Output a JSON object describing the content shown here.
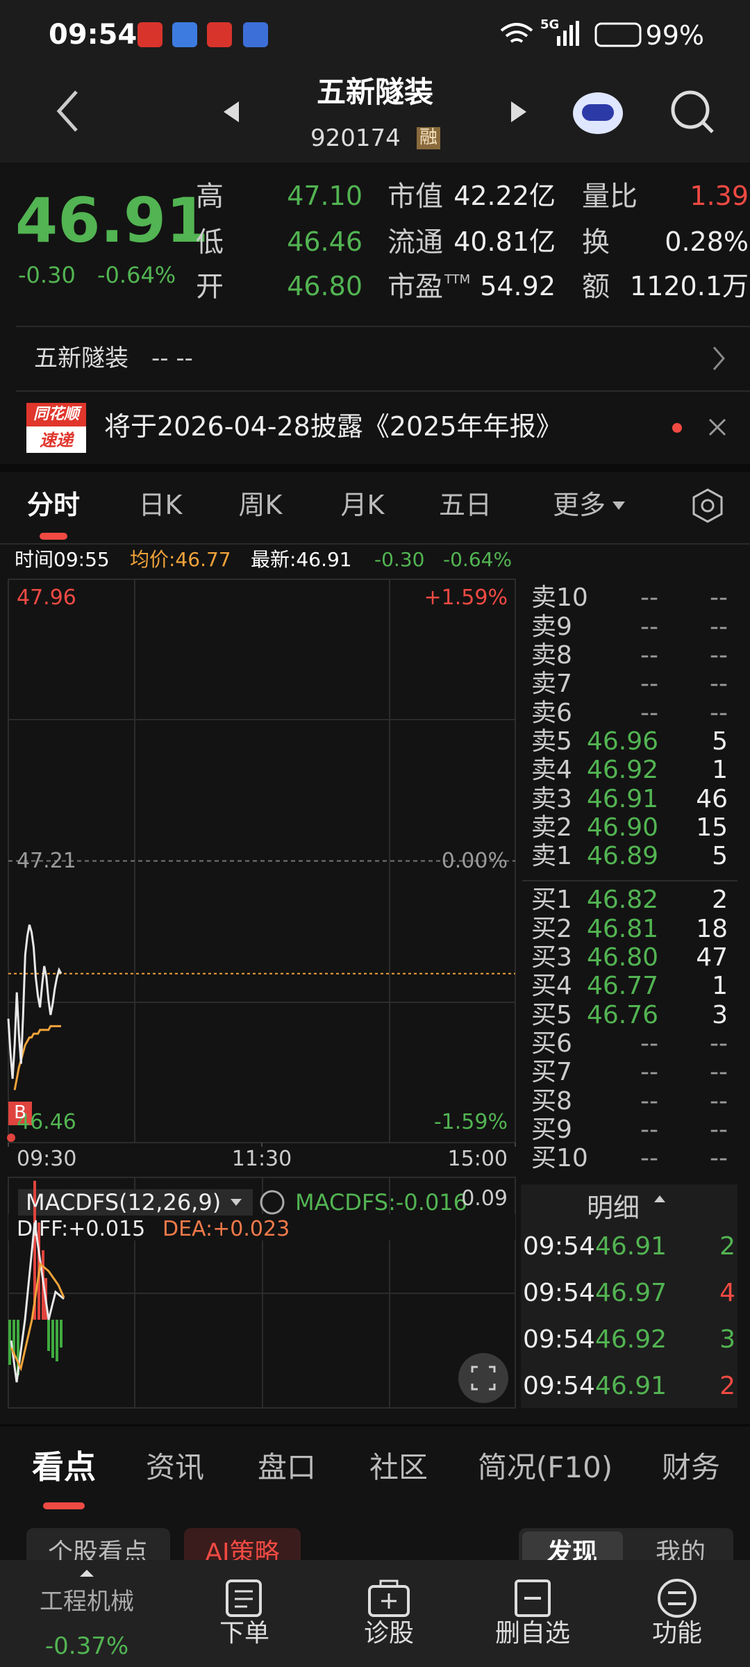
{
  "status": {
    "time": "09:54",
    "network": "5G",
    "battery": "99%"
  },
  "header": {
    "title": "五新隧装",
    "code": "920174",
    "badge": "融"
  },
  "quote": {
    "price": 46.91,
    "change": "-0.30",
    "pct": "-0.64%",
    "left": [
      {
        "label": "高",
        "value": "47.10",
        "color": "#52b452"
      },
      {
        "label": "低",
        "value": "46.46",
        "color": "#52b452"
      },
      {
        "label": "开",
        "value": "46.80",
        "color": "#52b452"
      }
    ],
    "mid": [
      {
        "label": "市值",
        "value": "42.22亿"
      },
      {
        "label": "流通",
        "value": "40.81亿"
      },
      {
        "label": "市盈",
        "sup": "TTM",
        "value": "54.92"
      }
    ],
    "right": [
      {
        "label": "量比",
        "value": "1.39",
        "color": "#f04a43"
      },
      {
        "label": "换",
        "value": "0.28%",
        "color": "#eeeeee"
      },
      {
        "label": "额",
        "value": "1120.1万",
        "color": "#eeeeee"
      }
    ]
  },
  "banner": {
    "name": "五新隧装",
    "placeholder": "-- --"
  },
  "notice": {
    "logo_top": "同花顺",
    "logo_bottom": "速递",
    "text": "将于2026-04-28披露《2025年年报》"
  },
  "tabs": [
    "分时",
    "日K",
    "周K",
    "月K",
    "五日",
    "更多"
  ],
  "info": {
    "time": "时间09:55",
    "avg": "均价:46.77",
    "latest": "最新:46.91",
    "change": "-0.30",
    "pct": "-0.64%"
  },
  "intraday": {
    "type": "line",
    "xlim": [
      0,
      240
    ],
    "xticks": [
      {
        "value": 0,
        "label": "09:30"
      },
      {
        "value": 120,
        "label": "11:30"
      },
      {
        "value": 240,
        "label": "15:00"
      }
    ],
    "ylim": [
      46.46,
      47.96
    ],
    "yticks": [
      47.96,
      47.21,
      46.46
    ],
    "pct_labels": [
      "+1.59%",
      "0.00%",
      "-1.59%"
    ],
    "marker": "B",
    "price": [
      46.79,
      46.7,
      46.63,
      46.72,
      46.86,
      46.75,
      46.67,
      46.8,
      46.96,
      47.01,
      47.04,
      47.02,
      46.98,
      46.9,
      46.85,
      46.82,
      46.88,
      46.93,
      46.9,
      46.84,
      46.8,
      46.83,
      46.87,
      46.9,
      46.92,
      46.91
    ],
    "avg": [
      null,
      null,
      null,
      46.6,
      46.63,
      46.66,
      46.68,
      46.7,
      46.72,
      46.73,
      46.74,
      46.74,
      46.75,
      46.75,
      46.75,
      46.76,
      46.76,
      46.76,
      46.76,
      46.76,
      46.77,
      46.77,
      46.77,
      46.77,
      46.77,
      46.77
    ],
    "price_color": "#e8e8e8",
    "avg_color": "#f0a33a",
    "last_color": "#f0a33a"
  },
  "macd": {
    "name": "MACDFS(12,26,9)",
    "value": "MACDFS:-0.016",
    "max": "0.09",
    "diff": "DIFF:+0.015",
    "dea": "DEA:+0.023"
  },
  "order_book": {
    "sell": [
      {
        "label": "卖10",
        "price": "--",
        "volume": "--"
      },
      {
        "label": "卖9",
        "price": "--",
        "volume": "--"
      },
      {
        "label": "卖8",
        "price": "--",
        "volume": "--"
      },
      {
        "label": "卖7",
        "price": "--",
        "volume": "--"
      },
      {
        "label": "卖6",
        "price": "--",
        "volume": "--"
      },
      {
        "label": "卖5",
        "price": "46.96",
        "volume": "5"
      },
      {
        "label": "卖4",
        "price": "46.92",
        "volume": "1"
      },
      {
        "label": "卖3",
        "price": "46.91",
        "volume": "46"
      },
      {
        "label": "卖2",
        "price": "46.90",
        "volume": "15"
      },
      {
        "label": "卖1",
        "price": "46.89",
        "volume": "5"
      }
    ],
    "buy": [
      {
        "label": "买1",
        "price": "46.82",
        "volume": "2"
      },
      {
        "label": "买2",
        "price": "46.81",
        "volume": "18"
      },
      {
        "label": "买3",
        "price": "46.80",
        "volume": "47"
      },
      {
        "label": "买4",
        "price": "46.77",
        "volume": "1"
      },
      {
        "label": "买5",
        "price": "46.76",
        "volume": "3"
      },
      {
        "label": "买6",
        "price": "--",
        "volume": "--"
      },
      {
        "label": "买7",
        "price": "--",
        "volume": "--"
      },
      {
        "label": "买8",
        "price": "--",
        "volume": "--"
      },
      {
        "label": "买9",
        "price": "--",
        "volume": "--"
      },
      {
        "label": "买10",
        "price": "--",
        "volume": "--"
      }
    ]
  },
  "trades": {
    "title": "明细",
    "rows": [
      {
        "time": "09:54",
        "price": "46.91",
        "volume": "2",
        "color": "#52b452"
      },
      {
        "time": "09:54",
        "price": "46.97",
        "volume": "4",
        "color": "#f04a43"
      },
      {
        "time": "09:54",
        "price": "46.92",
        "volume": "3",
        "color": "#52b452"
      },
      {
        "time": "09:54",
        "price": "46.91",
        "volume": "2",
        "color": "#f04a43"
      }
    ]
  },
  "content_tabs": [
    "看点",
    "资讯",
    "盘口",
    "社区",
    "简况(F10)",
    "财务"
  ],
  "subtabs": [
    "个股看点",
    "AI策略",
    "发现",
    "我的"
  ],
  "nav": {
    "sector": "工程机械",
    "sector_change": "-0.37%",
    "items": [
      "下单",
      "诊股",
      "删自选",
      "功能"
    ]
  }
}
